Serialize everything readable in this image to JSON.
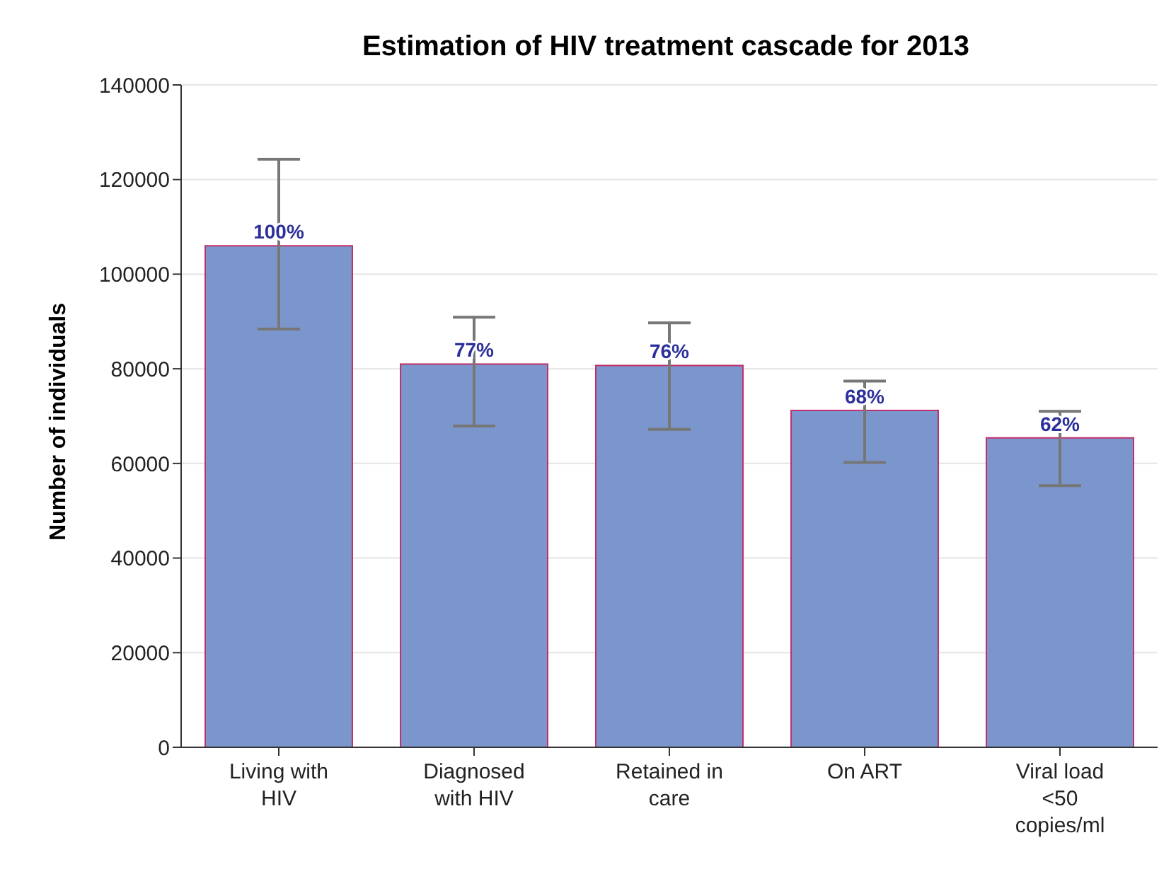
{
  "chart_data": {
    "type": "bar",
    "title": "Estimation of HIV treatment cascade for 2013",
    "ylabel": "Number of individuals",
    "categories": [
      "Living with HIV",
      "Diagnosed with HIV",
      "Retained in care",
      "On ART",
      "Viral load <50 copies/ml"
    ],
    "values": [
      106000,
      81000,
      80700,
      71200,
      65400
    ],
    "errors": [
      [
        88400,
        124300
      ],
      [
        67900,
        90900
      ],
      [
        67200,
        89700
      ],
      [
        60200,
        77400
      ],
      [
        55300,
        71000
      ]
    ],
    "annotations": [
      {
        "text": "100%",
        "x": "Living with HIV",
        "y": 106000
      },
      {
        "text": "77%",
        "x": "Diagnosed with HIV",
        "y": 81000
      },
      {
        "text": "76%",
        "x": "Retained in care",
        "y": 80700
      },
      {
        "text": "68%",
        "x": "On ART",
        "y": 71200
      },
      {
        "text": "62%",
        "x": "Viral load <50 copies/ml",
        "y": 65400
      }
    ],
    "color": "#7b96cc",
    "ylim": [
      0,
      140000
    ],
    "yticks": [
      0,
      20000,
      40000,
      60000,
      80000,
      100000,
      120000,
      140000
    ],
    "grid": "y"
  }
}
